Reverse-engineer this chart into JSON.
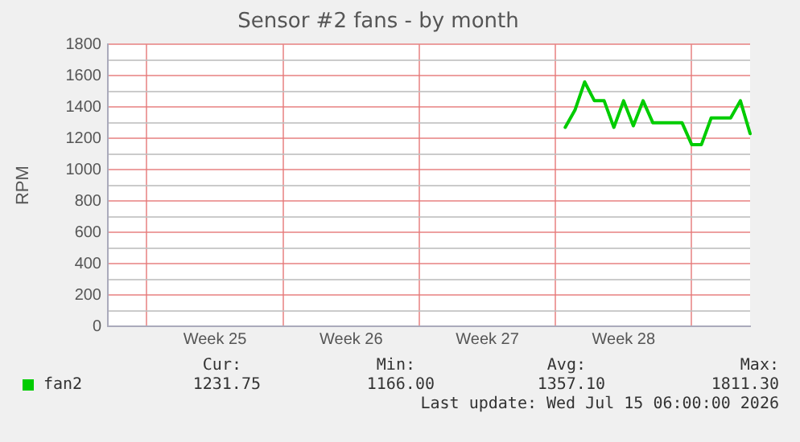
{
  "chart_data": {
    "type": "line",
    "title": "Sensor #2 fans - by month",
    "ylabel": "RPM",
    "categories": [
      null,
      null,
      null,
      null,
      null,
      null,
      null,
      null,
      null,
      null,
      null,
      "Week 25",
      null,
      null,
      null,
      null,
      null,
      null,
      null,
      null,
      null,
      null,
      null,
      null,
      null,
      "Week 26",
      null,
      null,
      null,
      null,
      null,
      null,
      null,
      null,
      null,
      null,
      null,
      null,
      null,
      "Week 27",
      null,
      null,
      null,
      null,
      null,
      null,
      null,
      null,
      null,
      null,
      null,
      null,
      null,
      "Week 28",
      null,
      null,
      null,
      null,
      null,
      null,
      null,
      null,
      null,
      null,
      null,
      null,
      null
    ],
    "ylim": [
      0,
      1800
    ],
    "yticks": [
      0,
      {
        "value": 100,
        "label": null
      },
      200,
      {
        "value": 300,
        "label": null
      },
      400,
      {
        "value": 500,
        "label": null
      },
      600,
      {
        "value": 700,
        "label": null
      },
      800,
      {
        "value": 900,
        "label": null
      },
      1000,
      {
        "value": 1100,
        "label": null
      },
      1200,
      {
        "value": 1300,
        "label": null
      },
      1400,
      {
        "value": 1500,
        "label": null
      },
      1600,
      {
        "value": 1700,
        "label": null
      },
      1800
    ],
    "grid": true,
    "legend": "bottom left",
    "marker": "none",
    "line_style": "solid",
    "series": [
      {
        "name": "fan2",
        "color": "#00cc00",
        "values": [
          null,
          null,
          null,
          null,
          null,
          null,
          null,
          null,
          null,
          null,
          null,
          null,
          null,
          null,
          null,
          null,
          null,
          null,
          null,
          null,
          null,
          null,
          null,
          null,
          null,
          null,
          null,
          null,
          null,
          null,
          null,
          null,
          null,
          null,
          null,
          null,
          null,
          null,
          null,
          null,
          null,
          null,
          null,
          null,
          null,
          null,
          null,
          1270,
          1380,
          1560,
          1440,
          1440,
          1270,
          1440,
          1280,
          1440,
          1300,
          1300,
          1300,
          1300,
          1160,
          1160,
          1330,
          1330,
          1330,
          1440,
          1230
        ]
      }
    ],
    "annotations": [
      "Cur:",
      "Min:",
      "Avg:",
      "Max:",
      "1231.75",
      "1166.00",
      "1357.10",
      "1811.30",
      "Last update: Wed Jul 15 06:00:00 2026"
    ]
  }
}
